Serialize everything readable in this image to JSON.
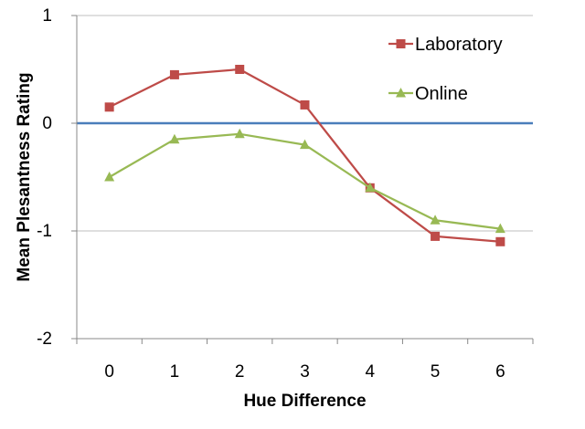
{
  "chart_data": {
    "type": "line",
    "title": "",
    "xlabel": "Hue Difference",
    "ylabel": "Mean Plesantness Rating",
    "x": [
      0,
      1,
      2,
      3,
      4,
      5,
      6
    ],
    "x_tick_labels": [
      "0",
      "1",
      "2",
      "3",
      "4",
      "5",
      "6"
    ],
    "ylim": [
      -2,
      1
    ],
    "y_ticks": [
      1,
      0,
      -1,
      -2
    ],
    "y_tick_labels": [
      "1",
      "0",
      "-1",
      "-2"
    ],
    "grid": "horizontal",
    "legend_position": "top-right",
    "reference_line": {
      "y": 0,
      "color": "#4a7ebb"
    },
    "series": [
      {
        "name": "Laboratory",
        "color": "#be4b48",
        "marker": "square",
        "values": [
          0.15,
          0.45,
          0.5,
          0.17,
          -0.6,
          -1.05,
          -1.1
        ]
      },
      {
        "name": "Online",
        "color": "#98b954",
        "marker": "triangle",
        "values": [
          -0.5,
          -0.15,
          -0.1,
          -0.2,
          -0.6,
          -0.9,
          -0.98
        ]
      }
    ]
  }
}
